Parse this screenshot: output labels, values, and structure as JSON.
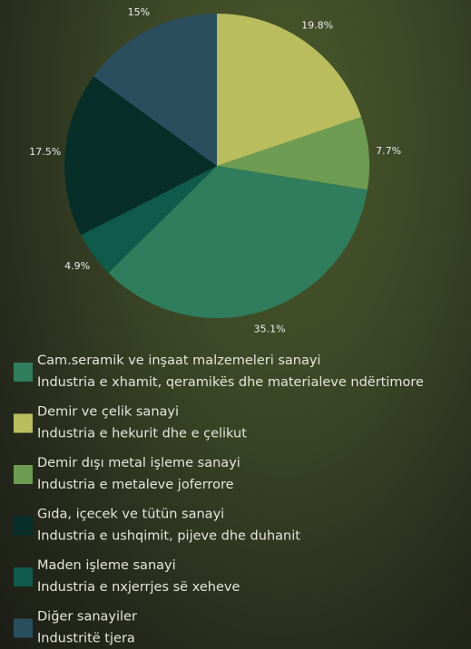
{
  "chart_data": {
    "type": "pie",
    "values": [
      19.8,
      7.7,
      35.1,
      4.9,
      17.5,
      15
    ],
    "value_labels": [
      "19.8%",
      "7.7%",
      "35.1%",
      "4.9%",
      "17.5%",
      "15%"
    ],
    "colors": [
      "#b9bd5e",
      "#6e9c52",
      "#2f7d5c",
      "#0f5a4b",
      "#082e2a",
      "#2a4e5e"
    ],
    "legend": [
      {
        "name": "Cam.seramik ve inşaat malzemeleri sanayi",
        "name_sq": "Industria e xhamit, qeramikës dhe materialeve ndërtimore",
        "color": "#2f7d5c"
      },
      {
        "name": "Demir ve çelik sanayi",
        "name_sq": "Industria e hekurit dhe e çelikut",
        "color": "#b9bd5e"
      },
      {
        "name": "Demir dışı metal işleme sanayi",
        "name_sq": "Industria e metaleve joferrore",
        "color": "#6e9c52"
      },
      {
        "name": "Gıda, içecek ve tütün sanayi",
        "name_sq": "Industria e ushqimit, pijeve dhe duhanit",
        "color": "#082e2a"
      },
      {
        "name": "Maden işleme sanayi",
        "name_sq": "Industria e nxjerrjes së xeheve",
        "color": "#0f5a4b"
      },
      {
        "name": "Diğer sanayiler",
        "name_sq": "Industritë tjera",
        "color": "#2a4e5e"
      }
    ]
  }
}
